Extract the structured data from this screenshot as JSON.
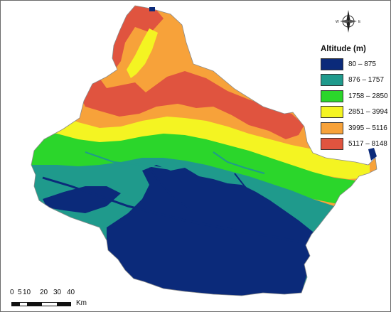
{
  "legend": {
    "title": "Altitude (m)",
    "classes": [
      {
        "label": "80 – 875",
        "color": "#0b2a7a"
      },
      {
        "label": "876 – 1757",
        "color": "#1f9a8c"
      },
      {
        "label": "1758 – 2850",
        "color": "#2bd62b"
      },
      {
        "label": "2851 – 3994",
        "color": "#f4f422"
      },
      {
        "label": "3995 – 5116",
        "color": "#f7a23a"
      },
      {
        "label": "5117 – 8148",
        "color": "#e0543f"
      }
    ]
  },
  "compass": {
    "w_label": "W",
    "e_label": "E",
    "icon": "compass-rose-icon"
  },
  "scale_bar": {
    "ticks": [
      "0",
      "5",
      "10",
      "20",
      "30",
      "40"
    ],
    "unit": "Km"
  }
}
